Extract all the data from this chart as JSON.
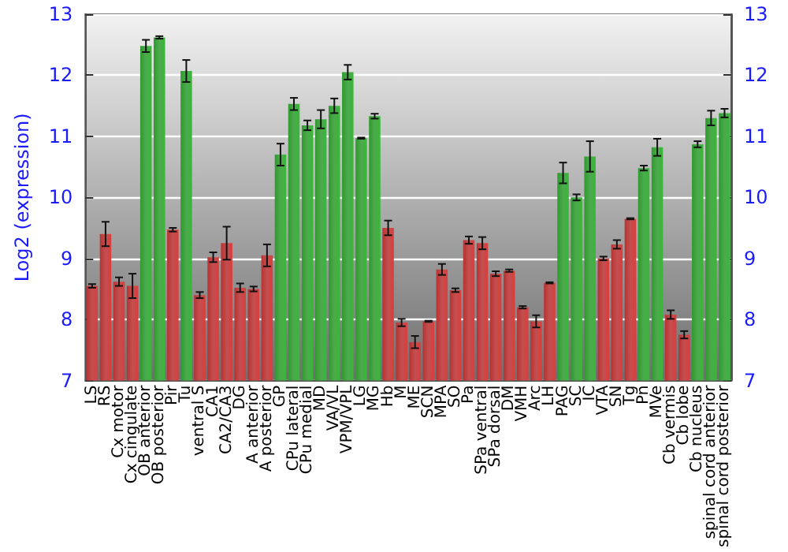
{
  "chart_data": {
    "type": "bar",
    "ylabel": "Log2 (expression)",
    "categories": [
      "LS",
      "RS",
      "Cx motor",
      "Cx cingulate",
      "OB anterior",
      "OB posterior",
      "Pir",
      "Tu",
      "ventral S",
      "CA1",
      "CA2/CA3",
      "DG",
      "A anterior",
      "A posterior",
      "GP",
      "CPu lateral",
      "CPu medial",
      "MD",
      "VA/VL",
      "VPM/VPL",
      "LG",
      "MG",
      "Hb",
      "M",
      "ME",
      "SCN",
      "MPA",
      "SO",
      "Pa",
      "SPa ventral",
      "SPa dorsal",
      "DM",
      "VMH",
      "Arc",
      "LH",
      "PAG",
      "SC",
      "IC",
      "VTA",
      "SN",
      "Tg",
      "Pn",
      "MVe",
      "Cb vermis",
      "Cb lobe",
      "Cb nucleus",
      "spinal cord anterior",
      "spinal cord posterior"
    ],
    "values": [
      8.55,
      9.4,
      8.62,
      8.55,
      12.48,
      12.62,
      9.47,
      12.07,
      8.4,
      9.02,
      9.25,
      8.52,
      8.5,
      9.05,
      10.7,
      11.53,
      11.18,
      11.28,
      11.5,
      12.05,
      10.97,
      11.33,
      9.5,
      7.95,
      7.63,
      7.97,
      8.82,
      8.48,
      9.3,
      9.25,
      8.75,
      8.8,
      8.2,
      7.97,
      8.6,
      10.4,
      10.0,
      10.67,
      9.0,
      9.23,
      9.65,
      10.48,
      10.82,
      8.08,
      7.75,
      10.87,
      11.3,
      11.38
    ],
    "errors": [
      0.03,
      0.2,
      0.07,
      0.2,
      0.1,
      0.02,
      0.03,
      0.18,
      0.05,
      0.08,
      0.27,
      0.07,
      0.04,
      0.18,
      0.18,
      0.1,
      0.08,
      0.15,
      0.12,
      0.12,
      0.01,
      0.04,
      0.12,
      0.06,
      0.1,
      0.01,
      0.09,
      0.03,
      0.06,
      0.1,
      0.04,
      0.02,
      0.02,
      0.1,
      0.01,
      0.17,
      0.05,
      0.25,
      0.03,
      0.07,
      0.01,
      0.04,
      0.14,
      0.07,
      0.06,
      0.05,
      0.12,
      0.07
    ],
    "colors": [
      "#b83232",
      "#b83232",
      "#b83232",
      "#b83232",
      "#2e9a2e",
      "#2e9a2e",
      "#b83232",
      "#2e9a2e",
      "#b83232",
      "#b83232",
      "#b83232",
      "#b83232",
      "#b83232",
      "#b83232",
      "#2e9a2e",
      "#2e9a2e",
      "#2e9a2e",
      "#2e9a2e",
      "#2e9a2e",
      "#2e9a2e",
      "#2e9a2e",
      "#2e9a2e",
      "#b83232",
      "#b83232",
      "#b83232",
      "#b83232",
      "#b83232",
      "#b83232",
      "#b83232",
      "#b83232",
      "#b83232",
      "#b83232",
      "#b83232",
      "#b83232",
      "#b83232",
      "#2e9a2e",
      "#2e9a2e",
      "#2e9a2e",
      "#b83232",
      "#b83232",
      "#b83232",
      "#2e9a2e",
      "#2e9a2e",
      "#b83232",
      "#b83232",
      "#2e9a2e",
      "#2e9a2e",
      "#2e9a2e"
    ],
    "ylim": [
      7,
      13
    ],
    "yticks": [
      7,
      8,
      9,
      10,
      11,
      12,
      13
    ],
    "y2lim": [
      7,
      13
    ],
    "y2ticks": [
      7,
      8,
      9,
      10,
      11,
      12,
      13
    ],
    "grid": "y"
  }
}
